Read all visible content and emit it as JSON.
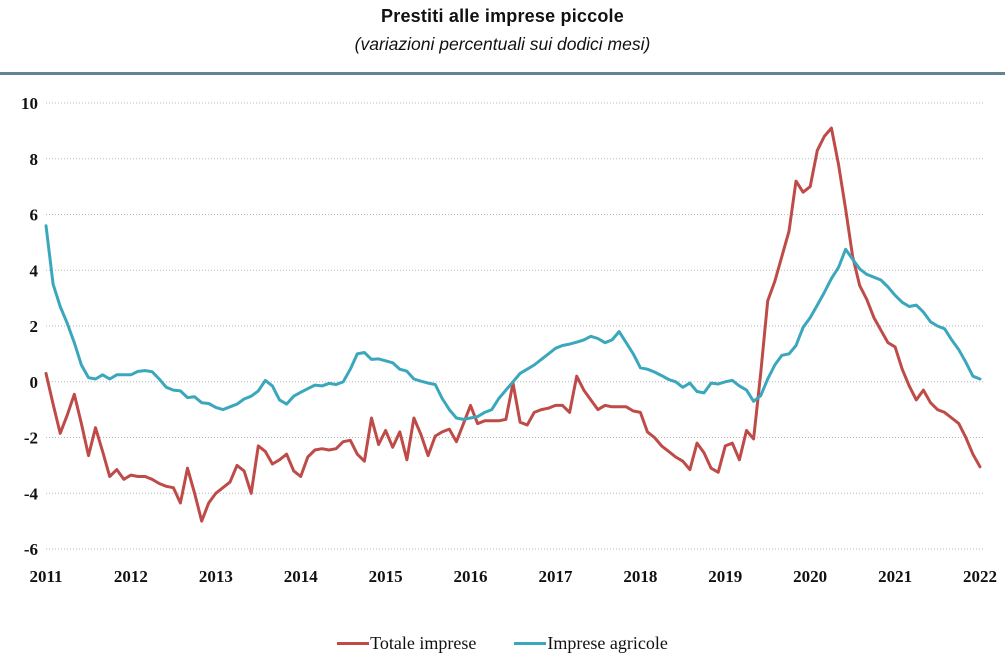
{
  "title": "Prestiti alle imprese piccole",
  "subtitle": "(variazioni percentuali sui dodici mesi)",
  "colors": {
    "totale_imprese": "#be4b48",
    "imprese_agricole": "#3ba7bd",
    "top_rule": "#5f8591",
    "gridline": "#b9b9b9",
    "text": "#111111"
  },
  "legend": [
    {
      "label": "Totale imprese",
      "color": "#be4b48"
    },
    {
      "label": "Imprese agricole",
      "color": "#3ba7bd"
    }
  ],
  "chart_data": {
    "type": "line",
    "frequency": "monthly",
    "x_start": "2011-01",
    "x_end": "2022-01",
    "x_tick_labels": [
      "2011",
      "2012",
      "2013",
      "2014",
      "2015",
      "2016",
      "2017",
      "2018",
      "2019",
      "2020",
      "2021",
      "2022"
    ],
    "y_ticks": [
      10,
      8,
      6,
      4,
      2,
      0,
      -2,
      -4,
      -6
    ],
    "ylim": [
      -6,
      10
    ],
    "grid": "horizontal-dotted",
    "legend_position": "bottom-center",
    "series": [
      {
        "name": "Totale imprese",
        "color": "#be4b48",
        "values": [
          0.3,
          -0.8,
          -1.85,
          -1.2,
          -0.45,
          -1.5,
          -2.65,
          -1.65,
          -2.5,
          -3.4,
          -3.15,
          -3.5,
          -3.35,
          -3.4,
          -3.4,
          -3.5,
          -3.65,
          -3.75,
          -3.8,
          -4.35,
          -3.1,
          -4.0,
          -5.0,
          -4.35,
          -4.0,
          -3.8,
          -3.6,
          -3.0,
          -3.2,
          -4.0,
          -2.3,
          -2.5,
          -2.95,
          -2.8,
          -2.6,
          -3.2,
          -3.4,
          -2.7,
          -2.45,
          -2.4,
          -2.45,
          -2.4,
          -2.15,
          -2.1,
          -2.6,
          -2.85,
          -1.3,
          -2.25,
          -1.75,
          -2.35,
          -1.8,
          -2.8,
          -1.3,
          -1.9,
          -2.65,
          -1.95,
          -1.8,
          -1.7,
          -2.15,
          -1.5,
          -0.85,
          -1.5,
          -1.4,
          -1.4,
          -1.4,
          -1.35,
          -0.05,
          -1.45,
          -1.55,
          -1.1,
          -1.0,
          -0.95,
          -0.85,
          -0.85,
          -1.1,
          0.2,
          -0.3,
          -0.65,
          -1.0,
          -0.85,
          -0.9,
          -0.9,
          -0.9,
          -1.05,
          -1.1,
          -1.8,
          -2.0,
          -2.3,
          -2.5,
          -2.7,
          -2.85,
          -3.15,
          -2.2,
          -2.55,
          -3.1,
          -3.25,
          -2.3,
          -2.2,
          -2.8,
          -1.75,
          -2.05,
          0.3,
          2.9,
          3.6,
          4.5,
          5.4,
          7.2,
          6.8,
          7.0,
          8.3,
          8.8,
          9.1,
          7.8,
          6.2,
          4.5,
          3.45,
          2.95,
          2.3,
          1.85,
          1.4,
          1.25,
          0.45,
          -0.15,
          -0.65,
          -0.3,
          -0.75,
          -1.0,
          -1.1,
          -1.3,
          -1.5,
          -2.0,
          -2.6,
          -3.05
        ]
      },
      {
        "name": "Imprese agricole",
        "color": "#3ba7bd",
        "values": [
          5.6,
          3.5,
          2.7,
          2.1,
          1.4,
          0.6,
          0.15,
          0.1,
          0.25,
          0.1,
          0.25,
          0.25,
          0.25,
          0.37,
          0.4,
          0.36,
          0.1,
          -0.2,
          -0.3,
          -0.33,
          -0.57,
          -0.54,
          -0.75,
          -0.78,
          -0.92,
          -1.0,
          -0.9,
          -0.8,
          -0.62,
          -0.52,
          -0.33,
          0.05,
          -0.15,
          -0.65,
          -0.8,
          -0.52,
          -0.38,
          -0.25,
          -0.12,
          -0.15,
          -0.06,
          -0.1,
          0.0,
          0.45,
          1.0,
          1.05,
          0.8,
          0.82,
          0.75,
          0.68,
          0.45,
          0.38,
          0.1,
          0.02,
          -0.05,
          -0.1,
          -0.6,
          -1.0,
          -1.3,
          -1.35,
          -1.3,
          -1.25,
          -1.1,
          -1.0,
          -0.6,
          -0.3,
          0.0,
          0.3,
          0.45,
          0.6,
          0.8,
          1.0,
          1.2,
          1.3,
          1.35,
          1.42,
          1.5,
          1.63,
          1.55,
          1.4,
          1.5,
          1.8,
          1.4,
          1.0,
          0.5,
          0.45,
          0.35,
          0.22,
          0.08,
          0.0,
          -0.2,
          -0.05,
          -0.35,
          -0.4,
          -0.05,
          -0.08,
          0.0,
          0.05,
          -0.15,
          -0.3,
          -0.7,
          -0.5,
          0.1,
          0.6,
          0.95,
          1.0,
          1.3,
          1.95,
          2.3,
          2.75,
          3.2,
          3.7,
          4.1,
          4.75,
          4.4,
          4.05,
          3.85,
          3.75,
          3.65,
          3.4,
          3.1,
          2.85,
          2.7,
          2.75,
          2.5,
          2.15,
          2.0,
          1.9,
          1.5,
          1.15,
          0.7,
          0.2,
          0.1
        ]
      }
    ]
  }
}
